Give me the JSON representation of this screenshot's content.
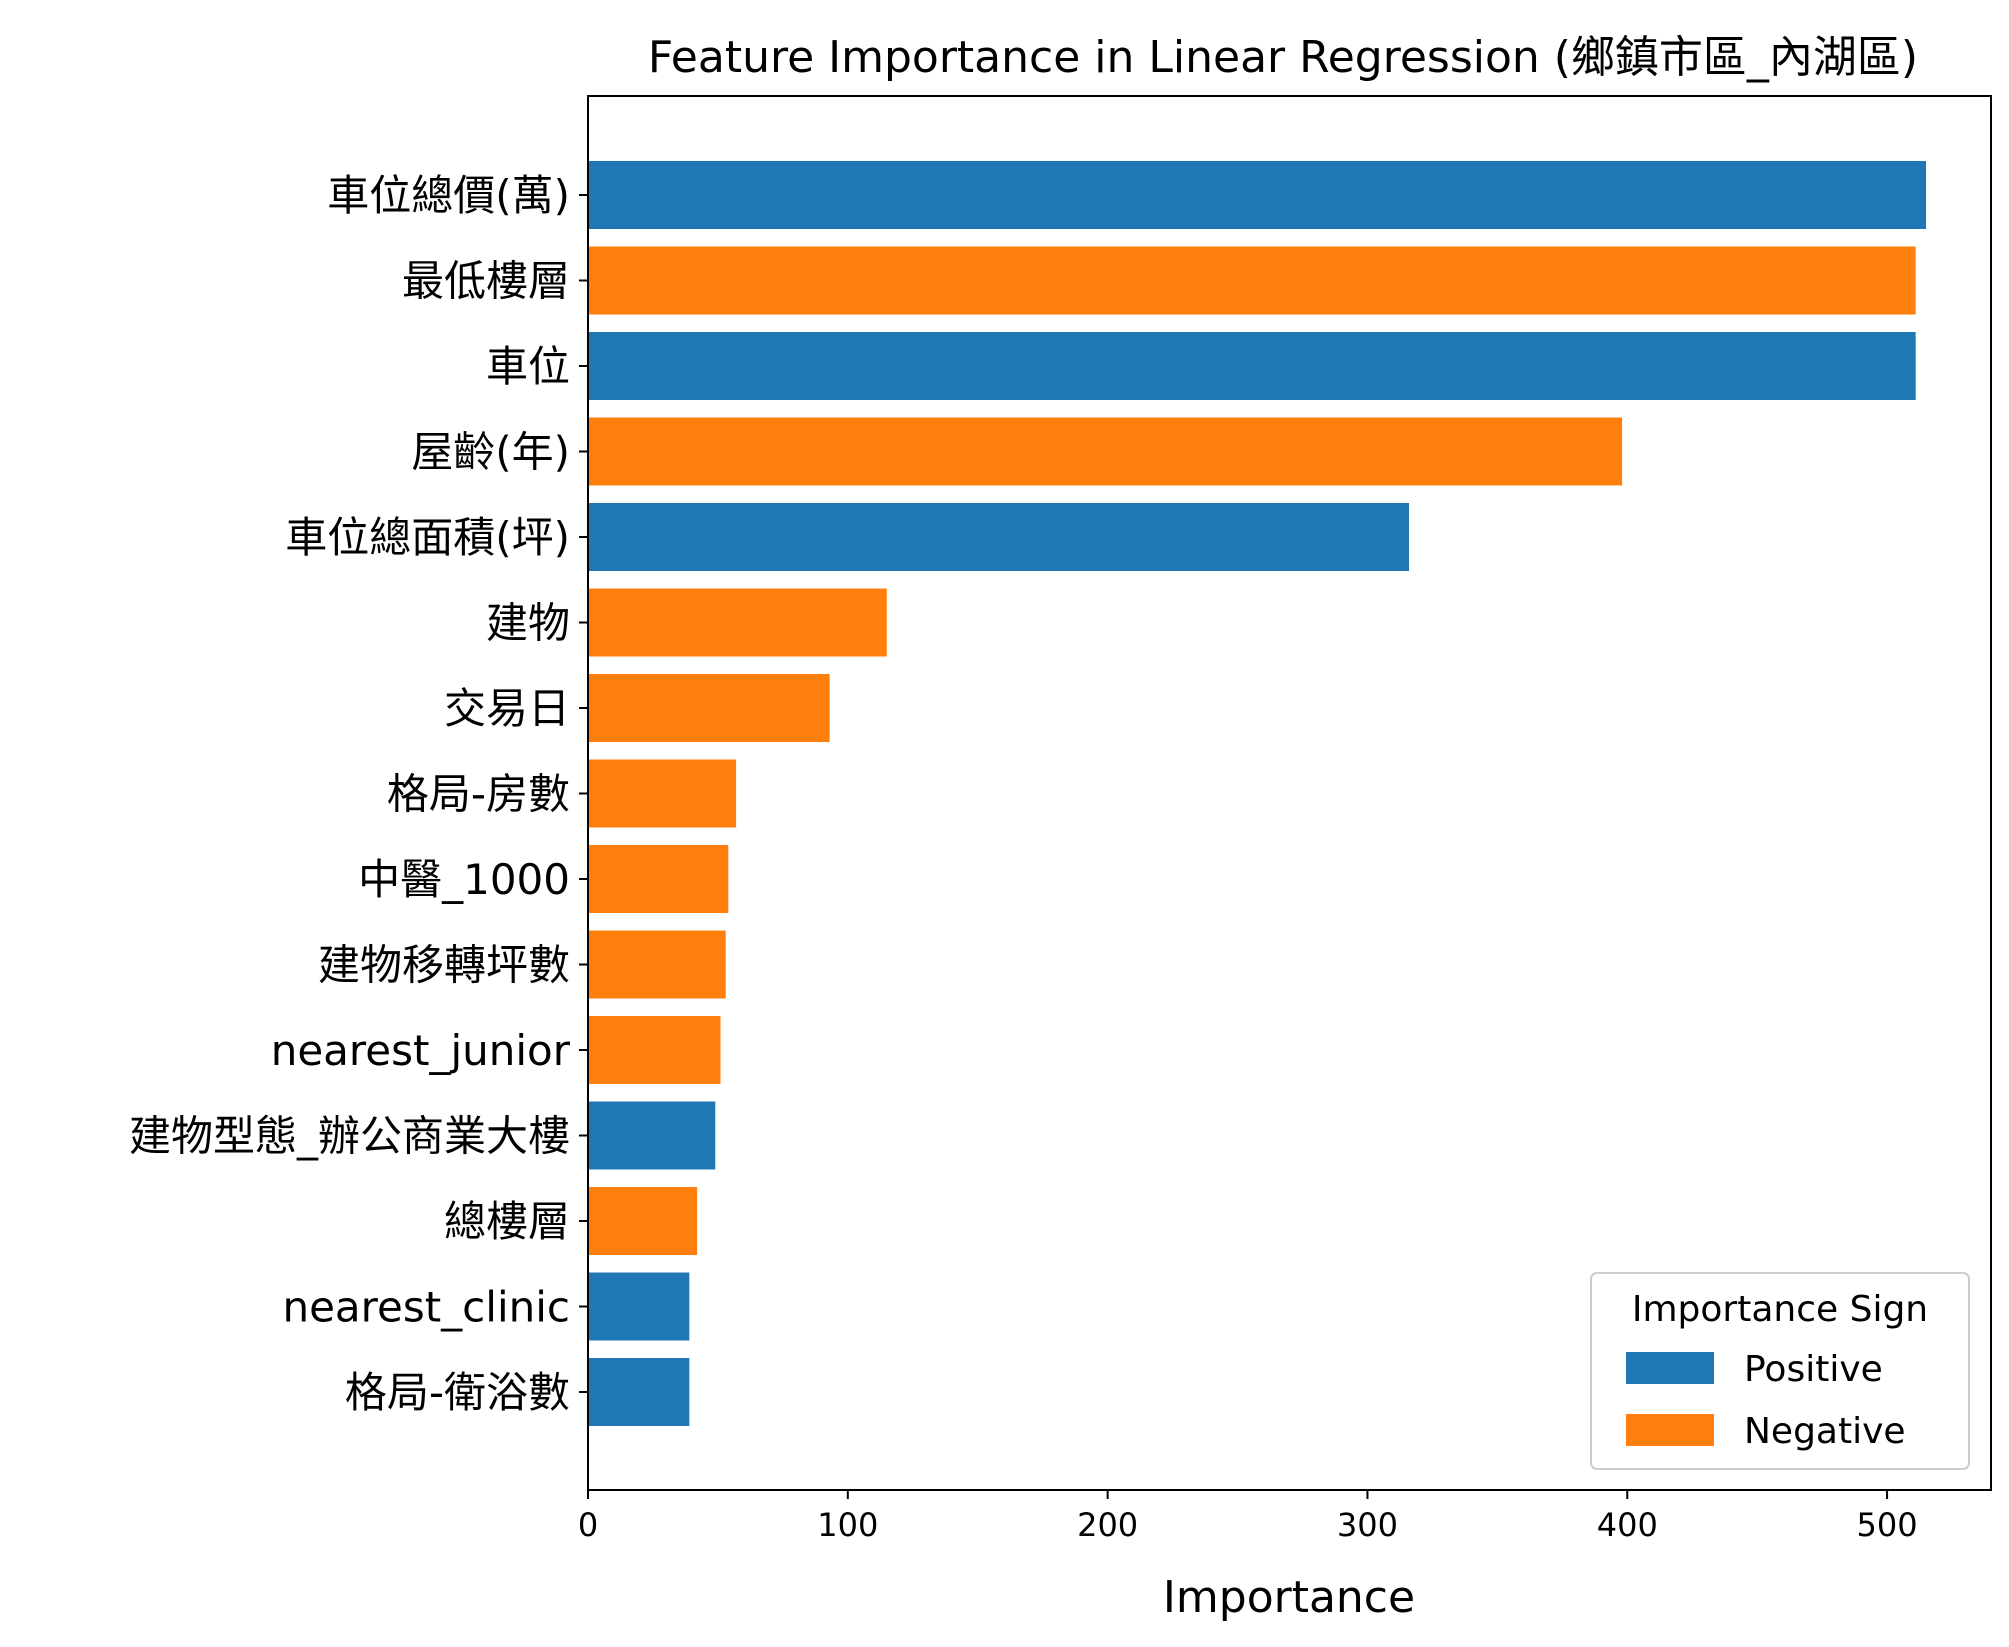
{
  "chart_data": {
    "type": "bar",
    "orientation": "horizontal",
    "title": "Feature Importance in Linear Regression (鄉鎮市區_內湖區)",
    "xlabel": "Importance",
    "ylabel": "",
    "xlim": [
      0,
      540
    ],
    "xticks": [
      0,
      100,
      200,
      300,
      400,
      500
    ],
    "grid": false,
    "categories": [
      "車位總價(萬)",
      "最低樓層",
      "車位",
      "屋齡(年)",
      "車位總面積(坪)",
      "建物",
      "交易日",
      "格局-房數",
      "中醫_1000",
      "建物移轉坪數",
      "nearest_junior",
      "建物型態_辦公商業大樓",
      "總樓層",
      "nearest_clinic",
      "格局-衛浴數"
    ],
    "values": [
      515,
      511,
      511,
      398,
      316,
      115,
      93,
      57,
      54,
      53,
      51,
      49,
      42,
      39,
      39
    ],
    "signs": [
      "Positive",
      "Negative",
      "Positive",
      "Negative",
      "Positive",
      "Negative",
      "Negative",
      "Negative",
      "Negative",
      "Negative",
      "Negative",
      "Positive",
      "Negative",
      "Positive",
      "Positive"
    ],
    "legend": {
      "title": "Importance Sign",
      "placement": "bottom-right",
      "entries": [
        {
          "label": "Positive",
          "color": "#1f77b4"
        },
        {
          "label": "Negative",
          "color": "#ff7f0e"
        }
      ]
    }
  }
}
